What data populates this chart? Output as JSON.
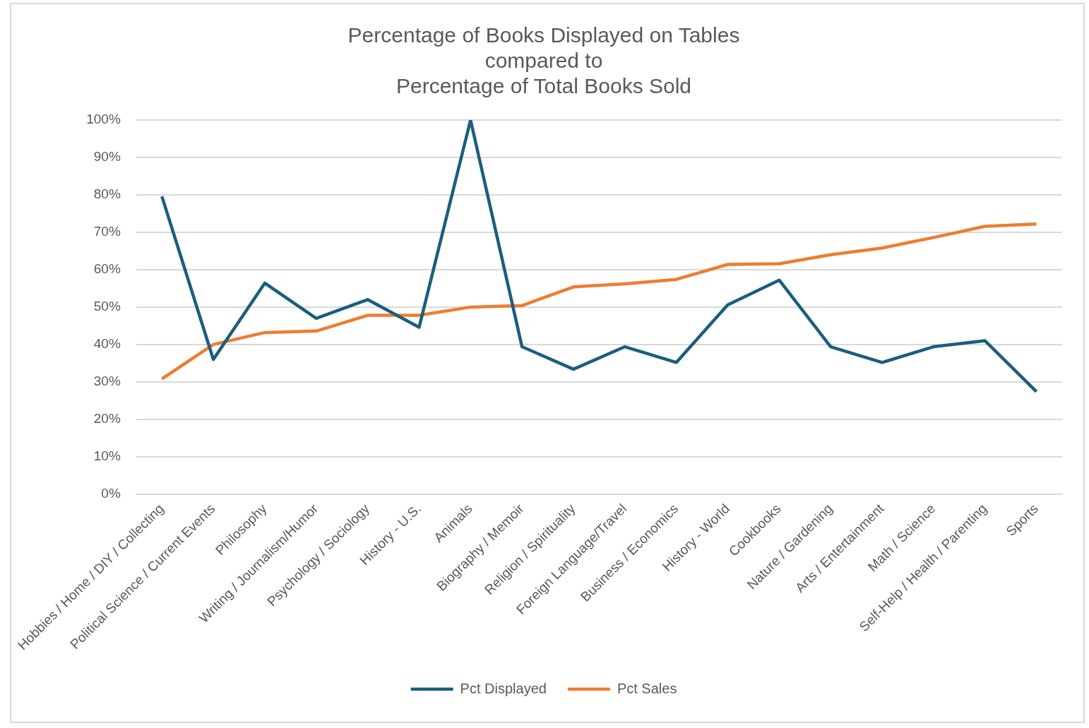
{
  "chart_data": {
    "type": "line",
    "title": "Percentage of Books Displayed on Tables\ncompared to\nPercentage of Total Books Sold",
    "categories": [
      "Hobbies / Home / DIY / Collecting",
      "Political Science / Current Events",
      "Philosophy",
      "Writing / Journalism/Humor",
      "Psychology / Sociology",
      "History - U.S.",
      "Animals",
      "Biography / Memoir",
      "Religion / Spirituality",
      "Foreign Language/Travel",
      "Business / Economics",
      "History - World",
      "Cookbooks",
      "Nature / Gardening",
      "Arts / Entertainment",
      "Math / Science",
      "Self-Help / Health / Parenting",
      "Sports"
    ],
    "series": [
      {
        "name": "Pct Displayed",
        "color": "#1b5e7e",
        "values": [
          79.6,
          36,
          56.4,
          47,
          52,
          44.6,
          100,
          39.4,
          33.4,
          39.4,
          35.2,
          50.6,
          57.2,
          39.4,
          35.2,
          39.4,
          41,
          27.4
        ]
      },
      {
        "name": "Pct Sales",
        "color": "#ed7d31",
        "values": [
          30.8,
          40,
          43.2,
          43.6,
          47.8,
          47.8,
          50,
          50.4,
          55.4,
          56.2,
          57.4,
          61.4,
          61.6,
          64,
          65.8,
          68.6,
          71.6,
          72.2
        ]
      }
    ],
    "ylim": [
      0,
      100
    ],
    "yticks": [
      {
        "value": 0,
        "label": "0%"
      },
      {
        "value": 10,
        "label": "10%"
      },
      {
        "value": 20,
        "label": "20%"
      },
      {
        "value": 30,
        "label": "30%"
      },
      {
        "value": 40,
        "label": "40%"
      },
      {
        "value": 50,
        "label": "50%"
      },
      {
        "value": 60,
        "label": "60%"
      },
      {
        "value": 70,
        "label": "70%"
      },
      {
        "value": 80,
        "label": "80%"
      },
      {
        "value": 90,
        "label": "90%"
      },
      {
        "value": 100,
        "label": "100%"
      }
    ],
    "grid": "y",
    "legend": "bottom",
    "marker": "none",
    "line_style": "solid"
  }
}
